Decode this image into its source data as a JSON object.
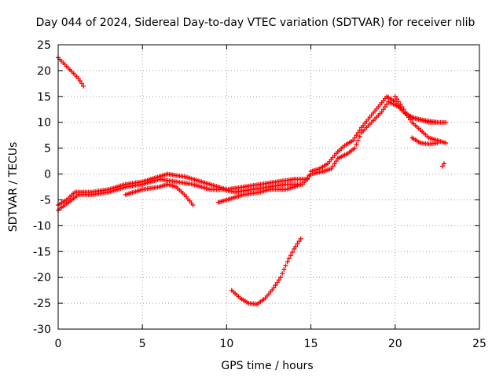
{
  "chart_data": {
    "type": "scatter",
    "title": "Day 044 of 2024, Sidereal Day-to-day VTEC variation (SDTVAR) for receiver nlib",
    "xlabel": "GPS time / hours",
    "ylabel": "SDTVAR / TECUs",
    "xlim": [
      0,
      25
    ],
    "ylim": [
      -30,
      25
    ],
    "xticks": [
      0,
      5,
      10,
      15,
      20,
      25
    ],
    "yticks": [
      -30,
      -25,
      -20,
      -15,
      -10,
      -5,
      0,
      5,
      10,
      15,
      20,
      25
    ],
    "grid": true,
    "legend": "none",
    "marker": "plus",
    "color": "#ff0000",
    "series": [
      {
        "name": "main-track-a",
        "points": [
          [
            0,
            -6
          ],
          [
            0.5,
            -5
          ],
          [
            1,
            -3.5
          ],
          [
            2,
            -3.5
          ],
          [
            3,
            -3
          ],
          [
            4,
            -2
          ],
          [
            5,
            -1.5
          ],
          [
            5.5,
            -1
          ],
          [
            6,
            -0.5
          ],
          [
            6.5,
            0
          ],
          [
            7,
            -0.3
          ],
          [
            7.5,
            -0.5
          ],
          [
            8,
            -1
          ],
          [
            9,
            -2
          ],
          [
            10,
            -3
          ],
          [
            11,
            -2.5
          ],
          [
            12,
            -2
          ],
          [
            13,
            -1.5
          ],
          [
            14,
            -1
          ],
          [
            14.8,
            -1
          ],
          [
            15,
            0.5
          ],
          [
            15.5,
            1
          ],
          [
            16,
            2
          ],
          [
            16.5,
            4
          ],
          [
            17,
            5.5
          ],
          [
            17.5,
            6.5
          ],
          [
            18,
            9
          ],
          [
            18.5,
            11
          ],
          [
            19,
            13
          ],
          [
            19.5,
            15
          ],
          [
            20,
            14
          ],
          [
            20.5,
            12
          ],
          [
            21,
            11
          ],
          [
            22,
            10
          ],
          [
            23,
            10
          ]
        ]
      },
      {
        "name": "main-track-b",
        "points": [
          [
            0,
            -7
          ],
          [
            0.6,
            -5.5
          ],
          [
            1.2,
            -4
          ],
          [
            2,
            -4
          ],
          [
            3,
            -3.5
          ],
          [
            4,
            -2.5
          ],
          [
            5,
            -2
          ],
          [
            6,
            -1
          ],
          [
            7,
            -1.5
          ],
          [
            8,
            -2
          ],
          [
            9,
            -3
          ],
          [
            9.8,
            -3
          ],
          [
            10.5,
            -3.5
          ],
          [
            11.5,
            -3
          ],
          [
            12.5,
            -2.5
          ],
          [
            13.5,
            -2
          ],
          [
            14.5,
            -2
          ],
          [
            15,
            0
          ],
          [
            15.7,
            0.5
          ],
          [
            16.2,
            1
          ],
          [
            16.6,
            3
          ],
          [
            17.2,
            4
          ],
          [
            17.6,
            5
          ],
          [
            18,
            8
          ],
          [
            18.6,
            10
          ],
          [
            19.2,
            12
          ],
          [
            19.6,
            14
          ],
          [
            20.2,
            13
          ],
          [
            20.8,
            11
          ],
          [
            21.5,
            10.5
          ],
          [
            22.5,
            10
          ]
        ]
      },
      {
        "name": "branch-to-low",
        "points": [
          [
            4,
            -4
          ],
          [
            5,
            -3
          ],
          [
            6,
            -2.5
          ],
          [
            6.5,
            -2
          ],
          [
            7,
            -2.5
          ],
          [
            7.5,
            -4
          ],
          [
            8,
            -6
          ]
        ]
      },
      {
        "name": "branch-to-late",
        "points": [
          [
            9.5,
            -5.5
          ],
          [
            10,
            -5
          ],
          [
            11,
            -4
          ],
          [
            12,
            -3.5
          ],
          [
            12.5,
            -3
          ],
          [
            13,
            -3
          ],
          [
            13.5,
            -3
          ],
          [
            14,
            -2.5
          ],
          [
            14.4,
            -2
          ]
        ]
      },
      {
        "name": "branch-evening",
        "points": [
          [
            20,
            15
          ],
          [
            20.5,
            12.5
          ],
          [
            21,
            10
          ],
          [
            21.5,
            8.5
          ],
          [
            22,
            7
          ],
          [
            22.5,
            6.5
          ],
          [
            23,
            6
          ]
        ]
      },
      {
        "name": "short-drop",
        "points": [
          [
            21,
            7
          ],
          [
            21.5,
            6
          ],
          [
            22,
            5.8
          ],
          [
            22.5,
            6
          ]
        ]
      },
      {
        "name": "upper-left-arc",
        "points": [
          [
            0,
            22.5
          ],
          [
            0.3,
            21.5
          ],
          [
            0.6,
            20.5
          ],
          [
            0.9,
            19.5
          ],
          [
            1.2,
            18.5
          ],
          [
            1.5,
            17
          ]
        ]
      },
      {
        "name": "dip-curve",
        "points": [
          [
            10.3,
            -22.5
          ],
          [
            10.8,
            -24
          ],
          [
            11.3,
            -25
          ],
          [
            11.8,
            -25.2
          ],
          [
            12.3,
            -24
          ],
          [
            12.8,
            -22
          ],
          [
            13.2,
            -20
          ],
          [
            13.6,
            -17
          ],
          [
            14,
            -14.5
          ],
          [
            14.4,
            -12.5
          ]
        ]
      },
      {
        "name": "isolated",
        "points": [
          [
            22.8,
            1.5
          ],
          [
            22.9,
            2
          ]
        ]
      }
    ]
  }
}
